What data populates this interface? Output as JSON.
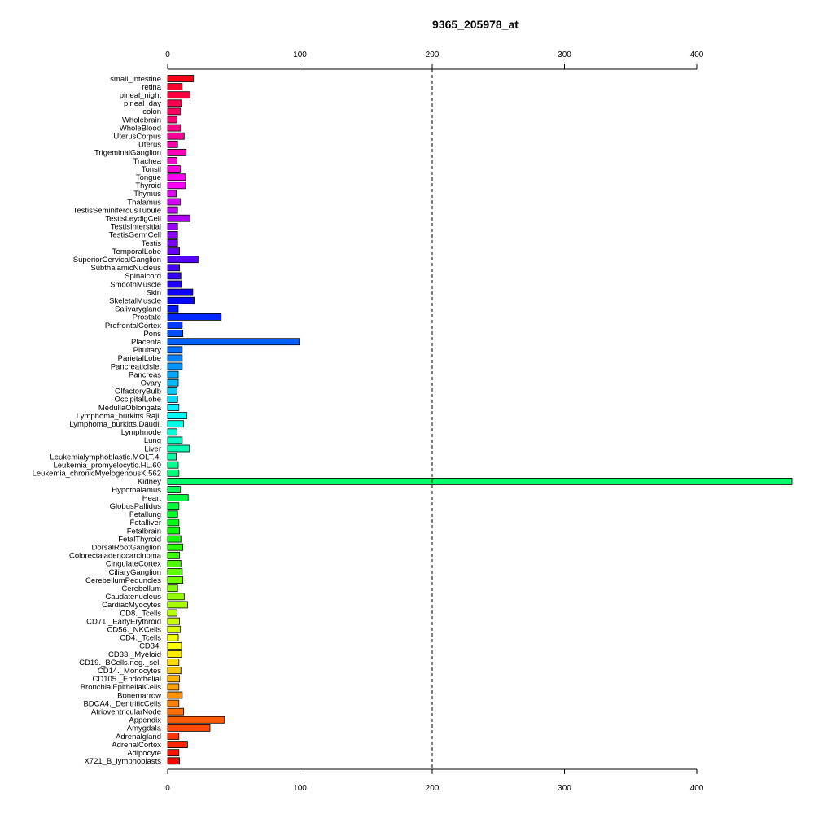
{
  "chart_data": {
    "type": "bar",
    "orientation": "horizontal",
    "title": "9365_205978_at",
    "xlabel": "",
    "ylabel": "",
    "xlim": [
      0,
      472
    ],
    "xticks": [
      0,
      100,
      200,
      300,
      400
    ],
    "reference_line": 200,
    "grid": false,
    "legend": "none",
    "categories": [
      "small_intestine",
      "retina",
      "pineal_night",
      "pineal_day",
      "colon",
      "Wholebrain",
      "WholeBlood",
      "UterusCorpus",
      "Uterus",
      "TrigeminalGanglion",
      "Trachea",
      "Tonsil",
      "Tongue",
      "Thyroid",
      "Thymus",
      "Thalamus",
      "TestisSeminiferousTubule",
      "TestisLeydigCell",
      "TestisIntersitial",
      "TestisGermCell",
      "Testis",
      "TemporalLobe",
      "SuperiorCervicalGanglion",
      "SubthalamicNucleus",
      "Spinalcord",
      "SmoothMuscle",
      "Skin",
      "SkeletalMuscle",
      "Salivarygland",
      "Prostate",
      "PrefrontalCortex",
      "Pons",
      "Placenta",
      "Pituitary",
      "ParietalLobe",
      "PancreaticIslet",
      "Pancreas",
      "Ovary",
      "OlfactoryBulb",
      "OccipitalLobe",
      "MedullaOblongata",
      "Lymphoma_burkitts.Raji.",
      "Lymphoma_burkitts.Daudi.",
      "Lymphnode",
      "Lung",
      "Liver",
      "Leukemialymphoblastic.MOLT.4.",
      "Leukemia_promyelocytic.HL.60",
      "Leukemia_chronicMyelogenousK.562",
      "Kidney",
      "Hypothalamus",
      "Heart",
      "GlobusPallidus",
      "Fetallung",
      "Fetalliver",
      "Fetalbrain",
      "FetalThyroid",
      "DorsalRootGanglion",
      "Colorectaladenocarcinoma",
      "CingulateCortex",
      "CiliaryGanglion",
      "CerebellumPeduncles",
      "Cerebellum",
      "Caudatenucleus",
      "CardiacMyocytes",
      "CD8._Tcells",
      "CD71._EarlyErythroid",
      "CD56._NKCells",
      "CD4._Tcells",
      "CD34.",
      "CD33._Myeloid",
      "CD19._BCells.neg._sel.",
      "CD14._Monocytes",
      "CD105._Endothelial",
      "BronchialEpithelialCells",
      "Bonemarrow",
      "BDCA4._DentriticCells",
      "AtrioventricularNode",
      "Appendix",
      "Amygdala",
      "Adrenalgland",
      "AdrenalCortex",
      "Adipocyte",
      "X721_B_lymphoblasts"
    ],
    "values": [
      19.5,
      11,
      17,
      10.5,
      9.5,
      7,
      9.5,
      12.5,
      7.5,
      14,
      7,
      9.5,
      13.5,
      13.5,
      6.5,
      9.5,
      7.5,
      17,
      7.5,
      7.5,
      7.5,
      9,
      23,
      9,
      10,
      10.5,
      19,
      20,
      8,
      40.5,
      11,
      11.5,
      99.5,
      11,
      11,
      11,
      8,
      8,
      7,
      7.5,
      8.5,
      14.5,
      12,
      7,
      11,
      16.5,
      6.5,
      8,
      8.5,
      472,
      9.5,
      15.5,
      8.5,
      7.5,
      8.5,
      9,
      10,
      11.5,
      9,
      10,
      11,
      11.5,
      7.5,
      12.5,
      15,
      7,
      9,
      9.5,
      8,
      10.5,
      10.5,
      8.5,
      10,
      9,
      8.5,
      11,
      8.5,
      12,
      43,
      32,
      8.5,
      15,
      8.5,
      9
    ]
  }
}
